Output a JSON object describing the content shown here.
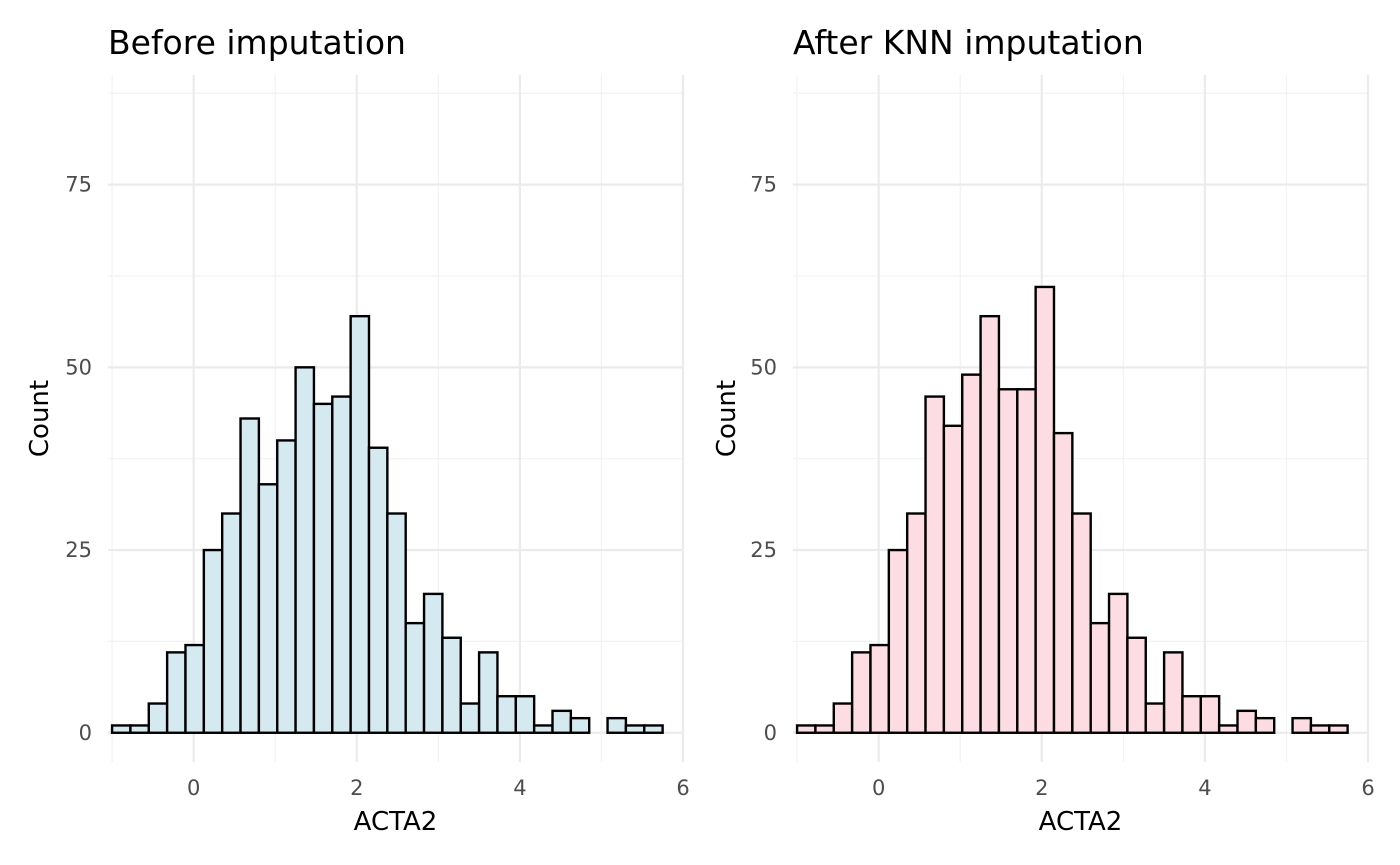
{
  "chart_data": [
    {
      "type": "bar",
      "title": "Before imputation",
      "xlabel": "ACTA2",
      "ylabel": "Count",
      "bar_fill": "#d5e9f0",
      "bar_outline": "#000000",
      "xlim": [
        -1.05,
        6
      ],
      "ylim": [
        -4,
        90
      ],
      "x_ticks": [
        0,
        2,
        4,
        6
      ],
      "y_ticks": [
        0,
        25,
        50,
        75
      ],
      "grid": true,
      "bins": {
        "start": -1.0,
        "width": 0.225,
        "counts": [
          1,
          1,
          4,
          11,
          12,
          25,
          30,
          43,
          34,
          40,
          50,
          45,
          46,
          57,
          39,
          30,
          15,
          19,
          13,
          4,
          11,
          5,
          5,
          1,
          3,
          2,
          0,
          2,
          1,
          1
        ]
      }
    },
    {
      "type": "bar",
      "title": "After KNN imputation",
      "xlabel": "ACTA2",
      "ylabel": "Count",
      "bar_fill": "#fddde3",
      "bar_outline": "#000000",
      "xlim": [
        -1.05,
        6
      ],
      "ylim": [
        -4,
        90
      ],
      "x_ticks": [
        0,
        2,
        4,
        6
      ],
      "y_ticks": [
        0,
        25,
        50,
        75
      ],
      "grid": true,
      "bins": {
        "start": -1.0,
        "width": 0.225,
        "counts": [
          1,
          1,
          4,
          11,
          12,
          25,
          30,
          46,
          42,
          49,
          57,
          47,
          47,
          61,
          41,
          30,
          15,
          19,
          13,
          4,
          11,
          5,
          5,
          1,
          3,
          2,
          0,
          2,
          1,
          1
        ]
      }
    }
  ]
}
